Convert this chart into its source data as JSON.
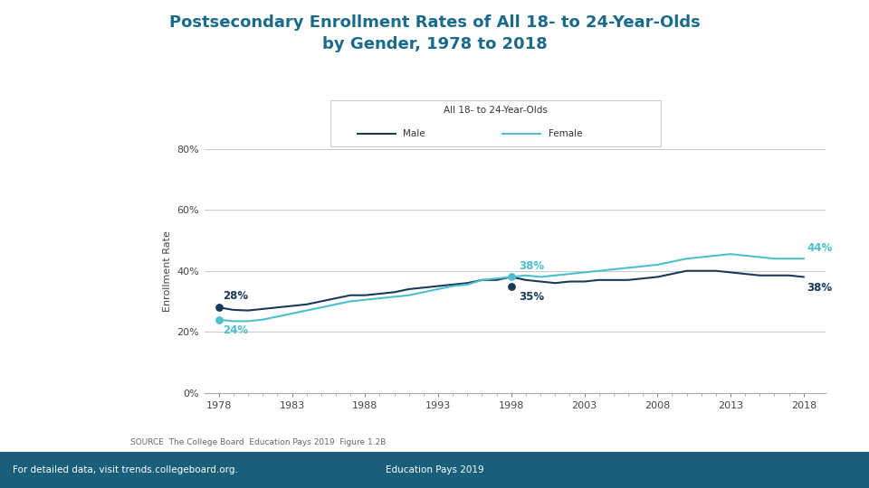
{
  "title_line1": "Postsecondary Enrollment Rates of All 18- to 24-Year-Olds",
  "title_line2": "by Gender, 1978 to 2018",
  "title_color": "#1a6b8a",
  "chart_subtitle": "All 18- to 24-Year-Olds",
  "ylabel": "Enrollment Rate",
  "source_text": "SOURCE  The College Board  Education Pays 2019  Figure 1.2B",
  "footer_left": "For detailed data, visit trends.collegeboard.org.",
  "footer_center": "Education Pays 2019",
  "footer_bar_color": "#1a5f7a",
  "male_color": "#1a3a5c",
  "female_color": "#4bbfce",
  "ylim": [
    0,
    80
  ],
  "yticks": [
    0,
    20,
    40,
    60,
    80
  ],
  "years": [
    1978,
    1979,
    1980,
    1981,
    1982,
    1983,
    1984,
    1985,
    1986,
    1987,
    1988,
    1989,
    1990,
    1991,
    1992,
    1993,
    1994,
    1995,
    1996,
    1997,
    1998,
    1999,
    2000,
    2001,
    2002,
    2003,
    2004,
    2005,
    2006,
    2007,
    2008,
    2009,
    2010,
    2011,
    2012,
    2013,
    2014,
    2015,
    2016,
    2017,
    2018
  ],
  "male_values": [
    28,
    27.2,
    27,
    27.5,
    28,
    28.5,
    29,
    30,
    31,
    32,
    32,
    32.5,
    33,
    34,
    34.5,
    35,
    35.5,
    36,
    37,
    37,
    38,
    37,
    36.5,
    36,
    36.5,
    36.5,
    37,
    37,
    37,
    37.5,
    38,
    39,
    40,
    40,
    40,
    39.5,
    39,
    38.5,
    38.5,
    38.5,
    38
  ],
  "female_values": [
    24,
    23.5,
    23.5,
    24,
    25,
    26,
    27,
    28,
    29,
    30,
    30.5,
    31,
    31.5,
    32,
    33,
    34,
    35,
    35.5,
    37,
    37.5,
    38,
    38.5,
    38,
    38.5,
    39,
    39.5,
    40,
    40.5,
    41,
    41.5,
    42,
    43,
    44,
    44.5,
    45,
    45.5,
    45,
    44.5,
    44,
    44,
    44
  ],
  "xtick_years": [
    1978,
    1983,
    1988,
    1993,
    1998,
    2003,
    2008,
    2013,
    2018
  ],
  "bg_color": "#ffffff",
  "grid_color": "#cccccc"
}
